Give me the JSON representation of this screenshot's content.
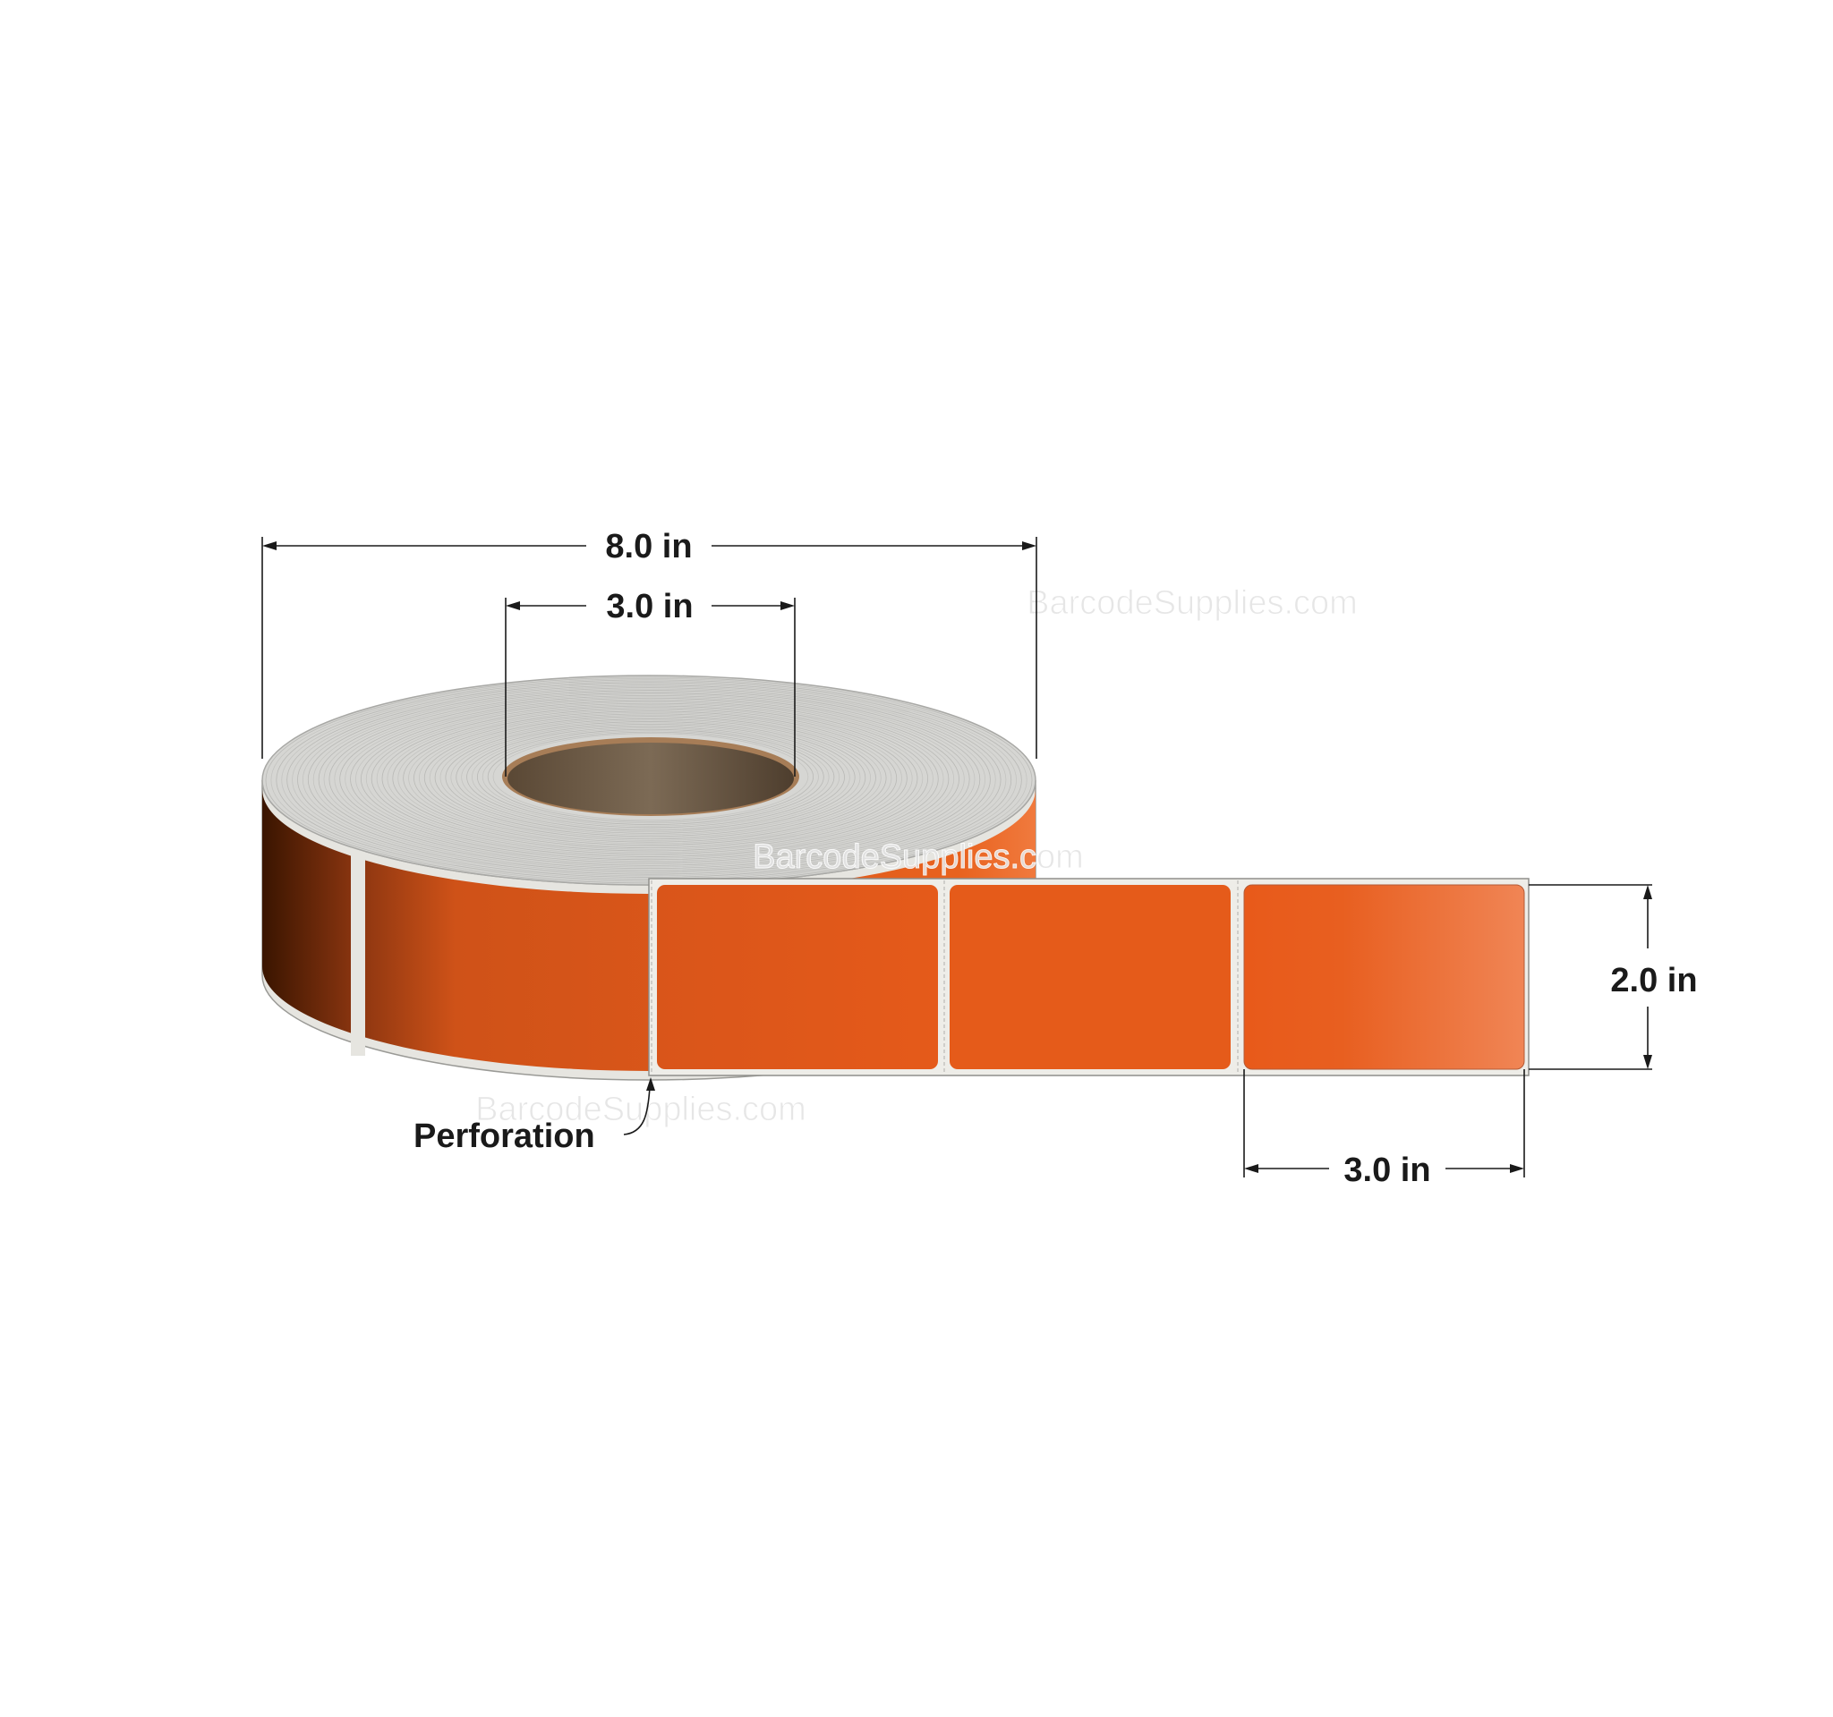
{
  "dimensions": {
    "roll_outer_diameter": "8.0 in",
    "core_diameter": "3.0 in",
    "label_height": "2.0 in",
    "label_width": "3.0 in"
  },
  "callouts": {
    "perforation": "Perforation"
  },
  "watermark": "BarcodeSupplies.com",
  "colors": {
    "label": "#e85a1a",
    "label_dark": "#4a1c02",
    "label_light": "#f08555",
    "liner": "#ecebe6",
    "roll_top": "#d6d6d3",
    "core": "#76624d",
    "text": "#1a1a1a"
  }
}
